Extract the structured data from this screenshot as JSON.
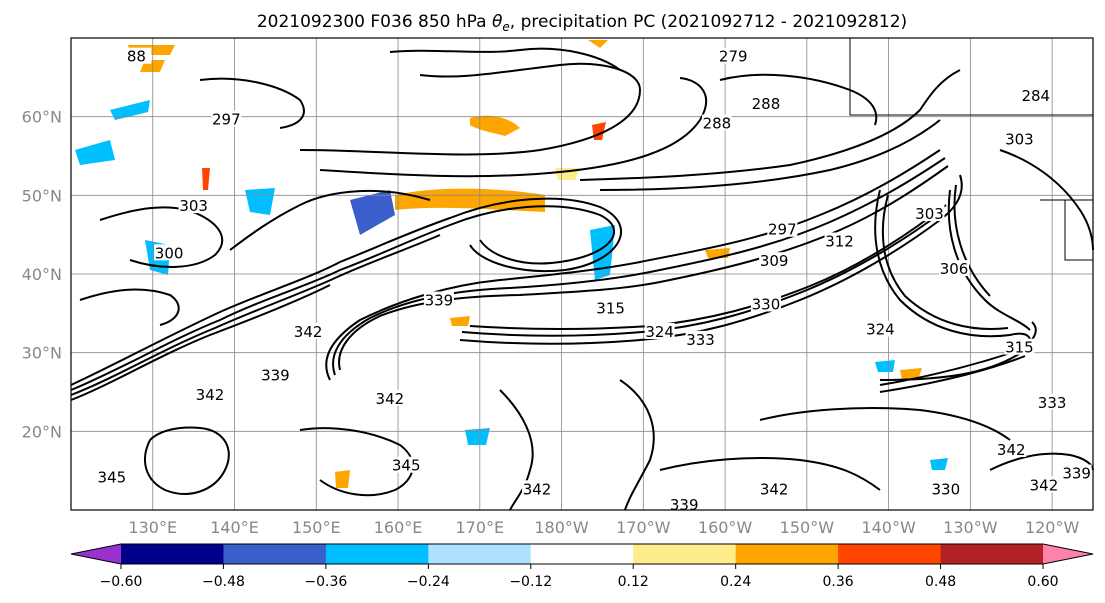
{
  "title": "2021092300 F036 850 hPa θe, precipitation PC (2021092712 - 2021092812)",
  "title_parts": {
    "prefix": "2021092300 F036 850 hPa ",
    "symbol": "θ",
    "subscript": "e",
    "suffix": ", precipitation PC (2021092712 - 2021092812)"
  },
  "map": {
    "lon_range": [
      120,
      245
    ],
    "lat_range": [
      10,
      70
    ],
    "lat_ticks": [
      {
        "lat": 60,
        "label": "60°N"
      },
      {
        "lat": 50,
        "label": "50°N"
      },
      {
        "lat": 40,
        "label": "40°N"
      },
      {
        "lat": 30,
        "label": "30°N"
      },
      {
        "lat": 20,
        "label": "20°N"
      }
    ],
    "lon_ticks": [
      {
        "lon": 130,
        "label": "130°E"
      },
      {
        "lon": 140,
        "label": "140°E"
      },
      {
        "lon": 150,
        "label": "150°E"
      },
      {
        "lon": 160,
        "label": "160°E"
      },
      {
        "lon": 170,
        "label": "170°E"
      },
      {
        "lon": 180,
        "label": "180°W"
      },
      {
        "lon": 190,
        "label": "170°W"
      },
      {
        "lon": 200,
        "label": "160°W"
      },
      {
        "lon": 210,
        "label": "150°W"
      },
      {
        "lon": 220,
        "label": "140°W"
      },
      {
        "lon": 230,
        "label": "130°W"
      },
      {
        "lon": 240,
        "label": "120°W"
      }
    ],
    "contour_labels": [
      {
        "text": "88",
        "lon": 128,
        "lat": 67.5
      },
      {
        "text": "279",
        "lon": 201,
        "lat": 67.5
      },
      {
        "text": "297",
        "lon": 139,
        "lat": 59.5
      },
      {
        "text": "288",
        "lon": 199,
        "lat": 59.0
      },
      {
        "text": "288",
        "lon": 205,
        "lat": 61.5
      },
      {
        "text": "284",
        "lon": 238,
        "lat": 62.5
      },
      {
        "text": "303",
        "lon": 236,
        "lat": 57.0
      },
      {
        "text": "303",
        "lon": 135,
        "lat": 48.5
      },
      {
        "text": "303",
        "lon": 225,
        "lat": 47.5
      },
      {
        "text": "297",
        "lon": 207,
        "lat": 45.5
      },
      {
        "text": "312",
        "lon": 214,
        "lat": 44.0
      },
      {
        "text": "309",
        "lon": 206,
        "lat": 41.5
      },
      {
        "text": "306",
        "lon": 228,
        "lat": 40.5
      },
      {
        "text": "300",
        "lon": 132,
        "lat": 42.5
      },
      {
        "text": "315",
        "lon": 186,
        "lat": 35.5
      },
      {
        "text": "330",
        "lon": 205,
        "lat": 36.0
      },
      {
        "text": "324",
        "lon": 192,
        "lat": 32.5
      },
      {
        "text": "333",
        "lon": 197,
        "lat": 31.5
      },
      {
        "text": "324",
        "lon": 219,
        "lat": 32.8
      },
      {
        "text": "315",
        "lon": 236,
        "lat": 30.5
      },
      {
        "text": "339",
        "lon": 165,
        "lat": 36.5
      },
      {
        "text": "342",
        "lon": 149,
        "lat": 32.5
      },
      {
        "text": "339",
        "lon": 145,
        "lat": 27.0
      },
      {
        "text": "342",
        "lon": 137,
        "lat": 24.5
      },
      {
        "text": "342",
        "lon": 159,
        "lat": 24.0
      },
      {
        "text": "333",
        "lon": 240,
        "lat": 23.5
      },
      {
        "text": "342",
        "lon": 235,
        "lat": 17.5
      },
      {
        "text": "339",
        "lon": 243,
        "lat": 14.5
      },
      {
        "text": "345",
        "lon": 161,
        "lat": 15.5
      },
      {
        "text": "345",
        "lon": 125,
        "lat": 14.0
      },
      {
        "text": "342",
        "lon": 177,
        "lat": 12.5
      },
      {
        "text": "342",
        "lon": 206,
        "lat": 12.5
      },
      {
        "text": "330",
        "lon": 227,
        "lat": 12.5
      },
      {
        "text": "342",
        "lon": 239,
        "lat": 13.0
      },
      {
        "text": "339",
        "lon": 195,
        "lat": 10.5
      }
    ]
  },
  "colorbar": {
    "ticks": [
      "−0.60",
      "−0.48",
      "−0.36",
      "−0.24",
      "−0.12",
      "0.12",
      "0.24",
      "0.36",
      "0.48",
      "0.60"
    ],
    "levels": [
      -0.6,
      -0.48,
      -0.36,
      -0.24,
      -0.12,
      0.12,
      0.24,
      0.36,
      0.48,
      0.6
    ],
    "colors": [
      "#9932cc",
      "#00008b",
      "#3a5fcd",
      "#00bfff",
      "#b0e2ff",
      "#ffffff",
      "#ffec8b",
      "#ffa500",
      "#ff4500",
      "#b22222",
      "#ff82ab"
    ]
  }
}
